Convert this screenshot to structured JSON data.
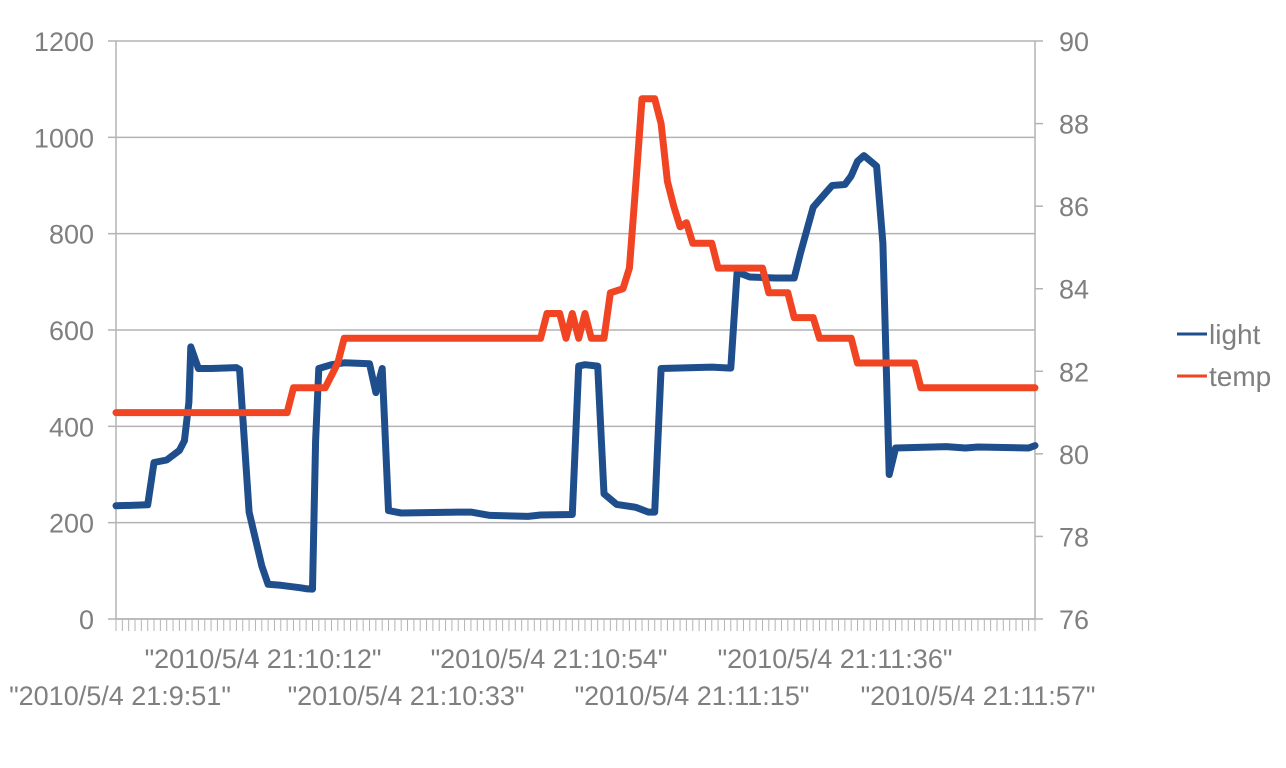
{
  "chart_data": {
    "type": "line",
    "title": "",
    "xlabel": "",
    "ylabel": "",
    "grid": true,
    "legend_position": "right",
    "x_tick_labels": [
      "\"2010/5/4 21:9:51\"",
      "\"2010/5/4 21:10:12\"",
      "\"2010/5/4 21:10:33\"",
      "\"2010/5/4 21:10:54\"",
      "\"2010/5/4 21:11:15\"",
      "\"2010/5/4 21:11:36\"",
      "\"2010/5/4 21:11:57\""
    ],
    "x_range": [
      0,
      145
    ],
    "y_left": {
      "min": 0,
      "max": 1200,
      "step": 200,
      "ticks": [
        "0",
        "200",
        "400",
        "600",
        "800",
        "1000",
        "1200"
      ]
    },
    "y_right": {
      "min": 76,
      "max": 90,
      "step": 2,
      "ticks": [
        "76",
        "78",
        "80",
        "82",
        "84",
        "86",
        "88",
        "90"
      ]
    },
    "series": [
      {
        "name": "light",
        "axis": "left",
        "color": "#1f4e8c",
        "points": [
          [
            0,
            235
          ],
          [
            5,
            237
          ],
          [
            6,
            325
          ],
          [
            8,
            330
          ],
          [
            10,
            350
          ],
          [
            10.8,
            370
          ],
          [
            11.5,
            450
          ],
          [
            11.8,
            565
          ],
          [
            13,
            520
          ],
          [
            15,
            520
          ],
          [
            19,
            522
          ],
          [
            19.5,
            518
          ],
          [
            21,
            222
          ],
          [
            23,
            110
          ],
          [
            24,
            72
          ],
          [
            26,
            70
          ],
          [
            29,
            65
          ],
          [
            30,
            63
          ],
          [
            31,
            62
          ],
          [
            31.5,
            370
          ],
          [
            32,
            520
          ],
          [
            34,
            528
          ],
          [
            36,
            532
          ],
          [
            40,
            530
          ],
          [
            41,
            470
          ],
          [
            42,
            520
          ],
          [
            43,
            225
          ],
          [
            45,
            220
          ],
          [
            54,
            222
          ],
          [
            56,
            222
          ],
          [
            59,
            215
          ],
          [
            65,
            213
          ],
          [
            67,
            216
          ],
          [
            72,
            217
          ],
          [
            73,
            525
          ],
          [
            74,
            528
          ],
          [
            76,
            525
          ],
          [
            77,
            260
          ],
          [
            79,
            238
          ],
          [
            82,
            232
          ],
          [
            84,
            222
          ],
          [
            85,
            222
          ],
          [
            86,
            520
          ],
          [
            94,
            523
          ],
          [
            97,
            521
          ],
          [
            98,
            720
          ],
          [
            100,
            710
          ],
          [
            104,
            708
          ],
          [
            107,
            708
          ],
          [
            108,
            760
          ],
          [
            110,
            855
          ],
          [
            112,
            885
          ],
          [
            113,
            900
          ],
          [
            115,
            902
          ],
          [
            116,
            920
          ],
          [
            117,
            950
          ],
          [
            118,
            962
          ],
          [
            120,
            940
          ],
          [
            121,
            780
          ],
          [
            122,
            300
          ],
          [
            123,
            355
          ],
          [
            131,
            358
          ],
          [
            134,
            355
          ],
          [
            136,
            357
          ],
          [
            144,
            355
          ],
          [
            145,
            360
          ]
        ]
      },
      {
        "name": "temp",
        "axis": "right",
        "color": "#f14423",
        "points": [
          [
            0,
            81.0
          ],
          [
            27,
            81.0
          ],
          [
            28,
            81.6
          ],
          [
            33,
            81.6
          ],
          [
            35,
            82.2
          ],
          [
            36,
            82.8
          ],
          [
            42,
            82.8
          ],
          [
            60,
            82.8
          ],
          [
            67,
            82.8
          ],
          [
            68,
            83.4
          ],
          [
            70,
            83.4
          ],
          [
            71,
            82.8
          ],
          [
            72,
            83.4
          ],
          [
            73,
            82.8
          ],
          [
            74,
            83.4
          ],
          [
            75,
            82.8
          ],
          [
            77,
            82.8
          ],
          [
            78,
            83.9
          ],
          [
            80,
            84.0
          ],
          [
            81,
            84.5
          ],
          [
            82,
            86.5
          ],
          [
            83,
            88.6
          ],
          [
            85,
            88.6
          ],
          [
            86,
            88.0
          ],
          [
            87,
            86.6
          ],
          [
            88,
            86.0
          ],
          [
            89,
            85.5
          ],
          [
            90,
            85.6
          ],
          [
            91,
            85.1
          ],
          [
            94,
            85.1
          ],
          [
            95,
            84.5
          ],
          [
            102,
            84.5
          ],
          [
            103,
            83.9
          ],
          [
            106,
            83.9
          ],
          [
            107,
            83.3
          ],
          [
            110,
            83.3
          ],
          [
            111,
            82.8
          ],
          [
            116,
            82.8
          ],
          [
            117,
            82.2
          ],
          [
            126,
            82.2
          ],
          [
            127,
            81.6
          ],
          [
            145,
            81.6
          ]
        ]
      }
    ]
  }
}
